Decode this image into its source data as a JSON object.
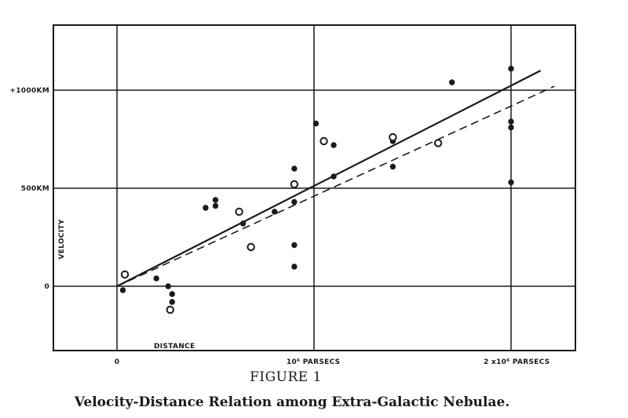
{
  "figure": {
    "label": "FIGURE 1",
    "caption": "Velocity-Distance Relation among Extra-Galactic Nebulae."
  },
  "chart_data": {
    "type": "scatter",
    "title": "",
    "xlabel": "DISTANCE",
    "ylabel": "VELOCITY",
    "x_unit": "parsecs",
    "y_unit": "km/s",
    "xlim": [
      -300000,
      2350000
    ],
    "ylim": [
      -340,
      1340
    ],
    "grid": true,
    "legend": "none",
    "x_ticks": [
      {
        "value": 0,
        "label": "0"
      },
      {
        "value": 1000000,
        "label": "10⁶ PARSECS"
      },
      {
        "value": 2000000,
        "label": "2 x10⁶ PARSECS"
      }
    ],
    "y_ticks": [
      {
        "value": 0,
        "label": "0"
      },
      {
        "value": 500,
        "label": "500KM"
      },
      {
        "value": 1000,
        "label": "+1000KM"
      }
    ],
    "series": [
      {
        "marker": "filled-circle",
        "points": [
          [
            30000,
            -20
          ],
          [
            200000,
            40
          ],
          [
            260000,
            0
          ],
          [
            280000,
            -40
          ],
          [
            280000,
            -80
          ],
          [
            450000,
            400
          ],
          [
            500000,
            410
          ],
          [
            500000,
            440
          ],
          [
            640000,
            320
          ],
          [
            800000,
            380
          ],
          [
            900000,
            600
          ],
          [
            900000,
            430
          ],
          [
            900000,
            210
          ],
          [
            900000,
            100
          ],
          [
            1010000,
            830
          ],
          [
            1100000,
            720
          ],
          [
            1100000,
            560
          ],
          [
            1400000,
            740
          ],
          [
            1400000,
            610
          ],
          [
            1700000,
            1040
          ],
          [
            2000000,
            1110
          ],
          [
            2000000,
            840
          ],
          [
            2000000,
            810
          ],
          [
            2000000,
            530
          ]
        ]
      },
      {
        "marker": "open-circle",
        "points": [
          [
            40000,
            60
          ],
          [
            270000,
            -120
          ],
          [
            620000,
            380
          ],
          [
            680000,
            200
          ],
          [
            900000,
            520
          ],
          [
            1050000,
            740
          ],
          [
            1400000,
            760
          ],
          [
            1630000,
            730
          ]
        ]
      },
      {
        "type": "line",
        "style": "solid",
        "points": [
          [
            0,
            0
          ],
          [
            2150000,
            1100
          ]
        ]
      },
      {
        "type": "line",
        "style": "dashed",
        "points": [
          [
            0,
            0
          ],
          [
            2220000,
            1020
          ]
        ]
      }
    ]
  }
}
